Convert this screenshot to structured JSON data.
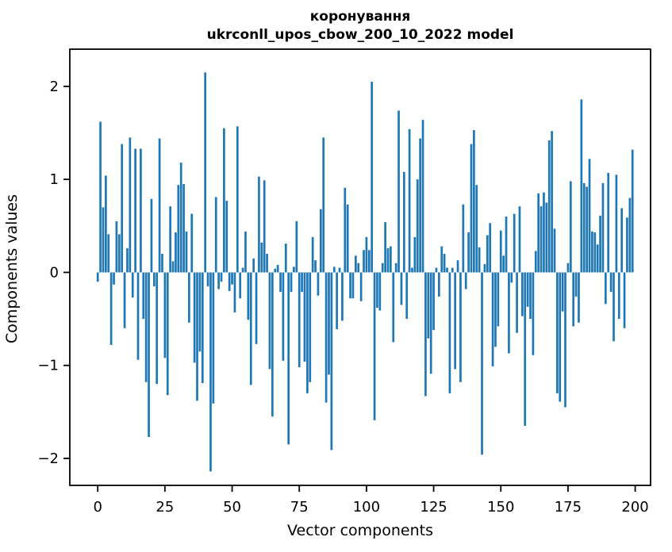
{
  "header": {
    "title_line1": "коронування",
    "title_line2": "ukrconll_upos_cbow_200_10_2022 model"
  },
  "axes": {
    "xlabel": "Vector components",
    "ylabel": "Components values"
  },
  "colors": {
    "bar": "#1f77b4",
    "axis": "#000000",
    "background": "#ffffff"
  },
  "chart_data": {
    "type": "bar",
    "title": "коронування\nukrconll_upos_cbow_200_10_2022 model",
    "xlabel": "Vector components",
    "ylabel": "Components values",
    "x_description": "word-vector component index 0..199",
    "n_bars": 200,
    "bar_color": "#1f77b4",
    "grid": false,
    "legend": null,
    "xticks": [
      0,
      25,
      50,
      75,
      100,
      125,
      150,
      175,
      200
    ],
    "yticks": [
      -2,
      -1,
      0,
      1,
      2
    ],
    "xlim": [
      -10.4,
      205.8
    ],
    "ylim": [
      -2.29,
      2.4
    ],
    "values": [
      -0.1,
      1.62,
      0.7,
      1.04,
      0.41,
      -0.78,
      -0.13,
      0.55,
      0.41,
      1.38,
      -0.6,
      0.26,
      1.45,
      -0.27,
      1.33,
      -0.94,
      1.33,
      -0.5,
      -1.18,
      -1.77,
      0.79,
      -0.15,
      -1.2,
      1.44,
      0.2,
      -0.92,
      -1.32,
      0.71,
      0.12,
      0.43,
      0.94,
      1.18,
      0.95,
      0.44,
      -0.54,
      0.63,
      -0.97,
      -1.38,
      -0.85,
      -1.19,
      2.15,
      -0.15,
      -2.14,
      -1.41,
      0.81,
      -0.18,
      -0.1,
      1.55,
      0.77,
      -0.2,
      -0.13,
      -0.43,
      1.57,
      -0.28,
      0.05,
      0.44,
      -0.51,
      -1.21,
      0.15,
      -0.77,
      1.03,
      0.32,
      0.99,
      0.2,
      -1.04,
      -1.55,
      0.04,
      0.08,
      -0.21,
      -0.95,
      0.31,
      -1.85,
      -0.21,
      0.06,
      0.55,
      -1.02,
      -0.21,
      -0.96,
      -1.3,
      -1.18,
      0.38,
      0.13,
      -0.25,
      0.68,
      1.45,
      -1.4,
      -1.1,
      -1.91,
      0.06,
      -0.61,
      0.05,
      -0.52,
      0.91,
      0.73,
      -0.28,
      -0.28,
      0.18,
      0.1,
      -0.31,
      0.24,
      0.38,
      0.24,
      2.05,
      -1.59,
      -0.38,
      -0.41,
      0.1,
      0.54,
      0.26,
      0.28,
      -0.75,
      0.1,
      1.74,
      -0.35,
      1.08,
      -0.5,
      1.54,
      0.05,
      0.38,
      1.0,
      1.44,
      1.64,
      -1.33,
      -0.71,
      -1.09,
      -0.62,
      0.05,
      -0.26,
      0.28,
      0.2,
      0.05,
      -1.3,
      0.05,
      -1.04,
      0.13,
      -1.18,
      0.73,
      -0.18,
      0.43,
      1.38,
      1.53,
      0.94,
      0.27,
      -1.96,
      0.09,
      0.4,
      0.53,
      -1.01,
      -0.8,
      -0.58,
      0.45,
      0.18,
      0.6,
      -0.87,
      -0.11,
      0.63,
      -0.65,
      0.71,
      -0.47,
      -1.65,
      -0.37,
      -0.5,
      -0.89,
      0.23,
      0.85,
      0.71,
      0.86,
      0.75,
      1.42,
      1.52,
      0.47,
      -1.3,
      -1.39,
      -0.42,
      -1.45,
      0.1,
      0.98,
      -0.58,
      -0.26,
      -0.54,
      1.86,
      0.96,
      0.92,
      1.22,
      0.44,
      0.43,
      0.3,
      0.61,
      0.96,
      -0.34,
      1.07,
      -0.21,
      -0.74,
      1.05,
      -0.5,
      0.69,
      -0.6,
      0.59,
      0.8,
      1.32
    ]
  }
}
